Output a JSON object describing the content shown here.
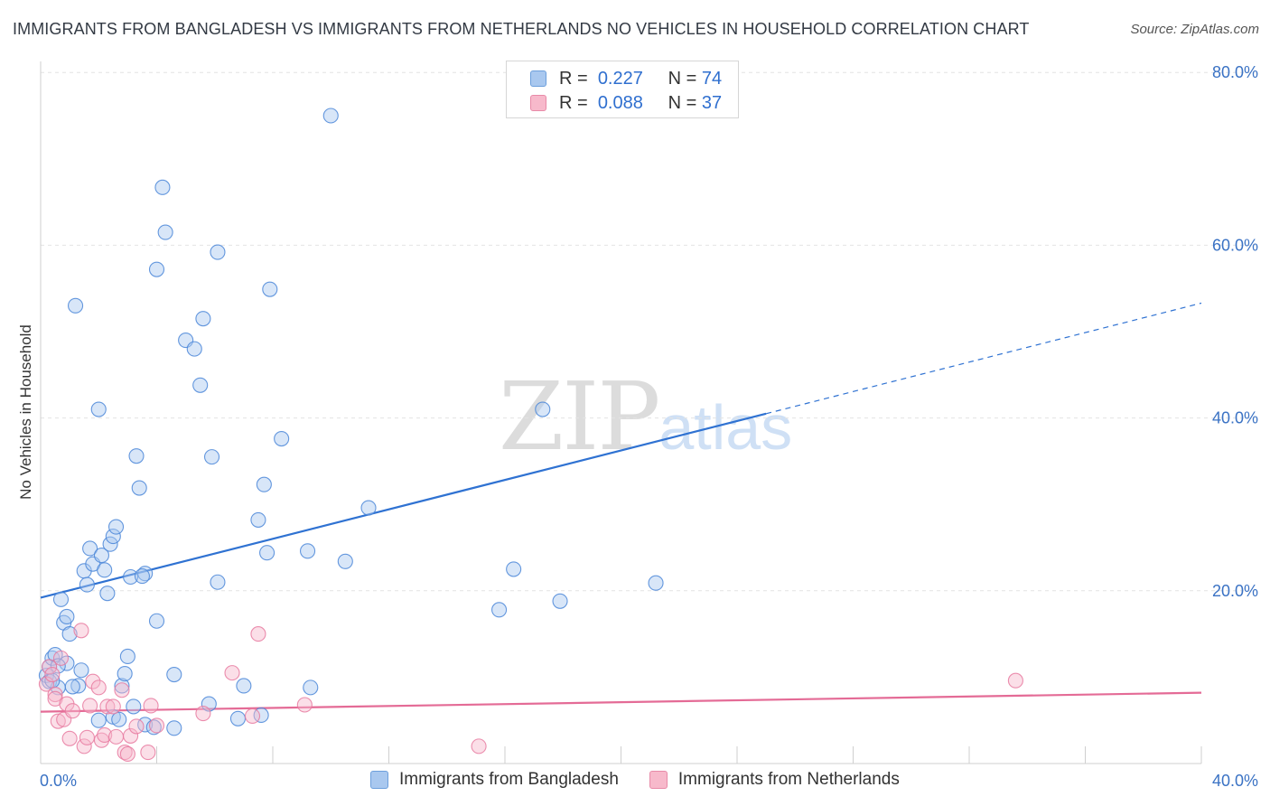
{
  "title": "IMMIGRANTS FROM BANGLADESH VS IMMIGRANTS FROM NETHERLANDS NO VEHICLES IN HOUSEHOLD CORRELATION CHART",
  "source": "Source: ZipAtlas.com",
  "watermark": {
    "zip": "ZIP",
    "atlas": "atlas"
  },
  "legend": {
    "r_label": "R =",
    "n_label": "N =",
    "rows": [
      {
        "name": "Immigrants from Bangladesh",
        "r": "0.227",
        "n": "74",
        "color": "#a9c8ef"
      },
      {
        "name": "Immigrants from Netherlands",
        "r": "0.088",
        "n": "37",
        "color": "#f7b9cb"
      }
    ]
  },
  "chart_data": {
    "type": "scatter",
    "title": "IMMIGRANTS FROM BANGLADESH VS IMMIGRANTS FROM NETHERLANDS NO VEHICLES IN HOUSEHOLD CORRELATION CHART",
    "xlabel": "",
    "ylabel": "No Vehicles in Household",
    "xlim": [
      0,
      40
    ],
    "ylim": [
      0,
      80
    ],
    "x_tick_labels": [
      "0.0%",
      "40.0%"
    ],
    "y_ticks": [
      20,
      40,
      60,
      80
    ],
    "y_tick_labels": [
      "20.0%",
      "40.0%",
      "60.0%",
      "80.0%"
    ],
    "grid": true,
    "legend_position": "top-center",
    "series": [
      {
        "name": "Immigrants from Bangladesh",
        "color": "#4a86d8",
        "fill": "#a9c8ef",
        "trend": {
          "x_start": 0,
          "y_start": 19.2,
          "x_solid_end": 25,
          "y_solid_end": 40.5,
          "x_end": 40,
          "y_end": 53.3
        },
        "points": [
          [
            0.2,
            10.2
          ],
          [
            0.3,
            11.2
          ],
          [
            0.4,
            12.2
          ],
          [
            0.5,
            12.6
          ],
          [
            0.3,
            9.5
          ],
          [
            0.6,
            8.8
          ],
          [
            0.7,
            19.0
          ],
          [
            0.8,
            16.3
          ],
          [
            0.9,
            17.0
          ],
          [
            1.0,
            15.0
          ],
          [
            0.9,
            11.6
          ],
          [
            1.2,
            53.0
          ],
          [
            1.3,
            9.0
          ],
          [
            1.4,
            10.8
          ],
          [
            1.5,
            22.3
          ],
          [
            1.6,
            20.7
          ],
          [
            1.7,
            24.9
          ],
          [
            1.8,
            23.1
          ],
          [
            2.0,
            41.0
          ],
          [
            2.1,
            24.1
          ],
          [
            2.2,
            22.4
          ],
          [
            2.3,
            19.7
          ],
          [
            2.4,
            25.4
          ],
          [
            2.5,
            26.3
          ],
          [
            2.6,
            27.4
          ],
          [
            2.0,
            5.0
          ],
          [
            2.5,
            5.4
          ],
          [
            2.8,
            9.0
          ],
          [
            2.9,
            10.4
          ],
          [
            3.0,
            12.4
          ],
          [
            3.1,
            21.6
          ],
          [
            3.2,
            6.6
          ],
          [
            3.3,
            35.6
          ],
          [
            3.4,
            31.9
          ],
          [
            3.6,
            22.0
          ],
          [
            3.6,
            4.5
          ],
          [
            3.9,
            4.2
          ],
          [
            4.0,
            16.5
          ],
          [
            4.0,
            57.2
          ],
          [
            4.2,
            66.7
          ],
          [
            4.3,
            61.5
          ],
          [
            4.6,
            10.3
          ],
          [
            4.6,
            4.1
          ],
          [
            5.0,
            49.0
          ],
          [
            5.3,
            48.0
          ],
          [
            5.5,
            43.8
          ],
          [
            5.6,
            51.5
          ],
          [
            5.8,
            6.9
          ],
          [
            5.9,
            35.5
          ],
          [
            6.1,
            59.2
          ],
          [
            6.1,
            21.0
          ],
          [
            6.8,
            5.2
          ],
          [
            7.0,
            9.0
          ],
          [
            7.5,
            28.2
          ],
          [
            7.6,
            5.6
          ],
          [
            7.7,
            32.3
          ],
          [
            7.8,
            24.4
          ],
          [
            7.9,
            54.9
          ],
          [
            8.3,
            37.6
          ],
          [
            9.2,
            24.6
          ],
          [
            9.3,
            8.8
          ],
          [
            10.0,
            75.0
          ],
          [
            10.5,
            23.4
          ],
          [
            11.3,
            29.6
          ],
          [
            15.8,
            17.8
          ],
          [
            16.3,
            22.5
          ],
          [
            17.3,
            41.0
          ],
          [
            17.9,
            18.8
          ],
          [
            21.2,
            20.9
          ],
          [
            0.6,
            11.3
          ],
          [
            1.1,
            8.9
          ],
          [
            2.7,
            5.1
          ],
          [
            3.5,
            21.7
          ],
          [
            0.4,
            9.6
          ]
        ]
      },
      {
        "name": "Immigrants from Netherlands",
        "color": "#e87aa0",
        "fill": "#f7b9cb",
        "trend": {
          "x_start": 0,
          "y_start": 6.0,
          "x_end": 40,
          "y_end": 8.2
        },
        "points": [
          [
            0.2,
            9.2
          ],
          [
            0.3,
            11.2
          ],
          [
            0.4,
            10.3
          ],
          [
            0.5,
            8.0
          ],
          [
            0.5,
            7.5
          ],
          [
            0.6,
            4.9
          ],
          [
            0.7,
            12.2
          ],
          [
            0.8,
            5.1
          ],
          [
            0.9,
            6.9
          ],
          [
            1.0,
            2.9
          ],
          [
            1.1,
            6.1
          ],
          [
            1.4,
            15.4
          ],
          [
            1.5,
            2.0
          ],
          [
            1.6,
            3.0
          ],
          [
            1.7,
            6.7
          ],
          [
            1.8,
            9.5
          ],
          [
            2.0,
            8.8
          ],
          [
            2.1,
            2.7
          ],
          [
            2.2,
            3.3
          ],
          [
            2.3,
            6.6
          ],
          [
            2.5,
            6.6
          ],
          [
            2.6,
            3.1
          ],
          [
            2.8,
            8.5
          ],
          [
            2.9,
            1.3
          ],
          [
            3.0,
            1.1
          ],
          [
            3.1,
            3.2
          ],
          [
            3.3,
            4.3
          ],
          [
            3.8,
            6.7
          ],
          [
            3.7,
            1.3
          ],
          [
            4.0,
            4.4
          ],
          [
            5.6,
            5.8
          ],
          [
            6.6,
            10.5
          ],
          [
            7.3,
            5.5
          ],
          [
            7.5,
            15.0
          ],
          [
            9.1,
            6.8
          ],
          [
            15.1,
            2.0
          ],
          [
            33.6,
            9.6
          ]
        ]
      }
    ]
  }
}
